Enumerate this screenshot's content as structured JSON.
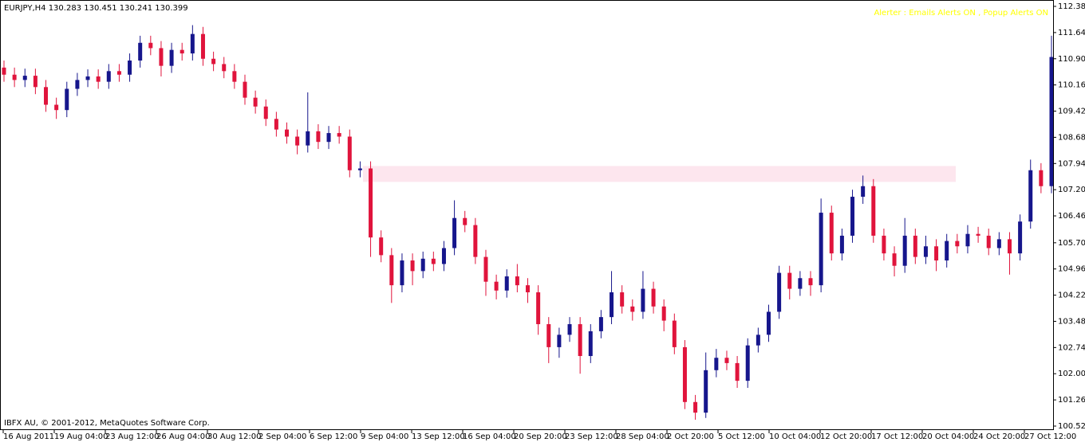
{
  "chart_data": {
    "type": "candlestick",
    "header": "EURJPY,H4  130.283 130.451 130.241 130.399",
    "annotation": "Alerter : Emails Alerts ON , Popup Alerts ON",
    "annotation_color": "#ffff00",
    "footer": "IBFX AU, © 2001-2012, MetaQuotes Software Corp.",
    "up_color": "#16168c",
    "down_color": "#e0143c",
    "zone": {
      "low": 107.42,
      "high": 107.87,
      "color": "#fde6ee"
    },
    "ylim": [
      100.52,
      112.38
    ],
    "yticks": [
      {
        "value": 112.38,
        "label": "112.380"
      },
      {
        "value": 111.64,
        "label": "111.640"
      },
      {
        "value": 110.9,
        "label": "110.900"
      },
      {
        "value": 110.16,
        "label": "110.160"
      },
      {
        "value": 109.42,
        "label": "109.420"
      },
      {
        "value": 108.68,
        "label": "108.680"
      },
      {
        "value": 107.94,
        "label": "107.940"
      },
      {
        "value": 107.2,
        "label": "107.200"
      },
      {
        "value": 106.46,
        "label": "106.460"
      },
      {
        "value": 105.7,
        "label": "105.700"
      },
      {
        "value": 104.96,
        "label": "104.960"
      },
      {
        "value": 104.22,
        "label": "104.220"
      },
      {
        "value": 103.48,
        "label": "103.480"
      },
      {
        "value": 102.74,
        "label": "102.740"
      },
      {
        "value": 102,
        "label": "102.000"
      },
      {
        "value": 101.26,
        "label": "101.260"
      },
      {
        "value": 100.52,
        "label": "100.520"
      }
    ],
    "xticks": [
      "16 Aug 2011",
      "19 Aug 04:00",
      "23 Aug 12:00",
      "26 Aug 04:00",
      "30 Aug 12:00",
      "2 Sep 04:00",
      "6 Sep 12:00",
      "9 Sep 04:00",
      "13 Sep 12:00",
      "16 Sep 04:00",
      "20 Sep 20:00",
      "23 Sep 12:00",
      "28 Sep 04:00",
      "2 Oct 20:00",
      "5 Oct 12:00",
      "10 Oct 04:00",
      "12 Oct 20:00",
      "17 Oct 12:00",
      "20 Oct 04:00",
      "24 Oct 20:00",
      "27 Oct 12:00"
    ],
    "open": [
      110.65,
      110.45,
      110.3,
      110.42,
      110.1,
      109.6,
      109.45,
      110.05,
      110.3,
      110.4,
      110.25,
      110.55,
      110.45,
      110.85,
      111.35,
      111.2,
      110.7,
      111.15,
      111.05,
      111.6,
      110.9,
      110.75,
      110.55,
      110.25,
      109.8,
      109.55,
      109.2,
      108.9,
      108.7,
      108.45,
      108.85,
      108.55,
      108.8,
      108.7,
      107.75,
      107.8,
      105.85,
      105.35,
      104.5,
      105.2,
      104.9,
      105.25,
      105.1,
      105.55,
      106.4,
      106.2,
      105.3,
      104.6,
      104.35,
      104.75,
      104.5,
      104.3,
      103.4,
      102.75,
      103.1,
      103.4,
      102.5,
      103.2,
      103.6,
      104.3,
      103.9,
      103.75,
      104.4,
      103.9,
      103.5,
      102.75,
      101.2,
      100.9,
      102.1,
      102.45,
      102.3,
      101.8,
      102.8,
      103.1,
      103.75,
      104.85,
      104.4,
      104.7,
      104.5,
      106.55,
      105.4,
      105.9,
      107.0,
      107.3,
      105.9,
      105.4,
      105.05,
      105.9,
      105.3,
      105.6,
      105.2,
      105.75,
      105.6,
      105.95,
      105.9,
      105.55,
      105.8,
      105.4,
      106.3,
      107.75,
      107.3
    ],
    "high": [
      110.85,
      110.65,
      110.62,
      110.62,
      110.3,
      109.8,
      110.25,
      110.5,
      110.6,
      110.6,
      110.75,
      110.75,
      111.05,
      111.55,
      111.55,
      111.4,
      111.35,
      111.35,
      111.85,
      111.8,
      111.1,
      110.95,
      110.75,
      110.45,
      110.0,
      109.75,
      109.4,
      109.1,
      108.9,
      109.95,
      109.05,
      109.0,
      109.0,
      108.9,
      108.0,
      108.0,
      106.05,
      105.55,
      105.4,
      105.4,
      105.45,
      105.45,
      105.75,
      106.9,
      106.6,
      106.4,
      105.5,
      104.8,
      104.95,
      105.1,
      104.7,
      104.5,
      103.6,
      103.3,
      103.6,
      103.6,
      103.4,
      103.8,
      104.9,
      104.5,
      104.1,
      104.9,
      104.6,
      104.1,
      103.7,
      102.95,
      101.4,
      102.6,
      102.7,
      102.65,
      102.5,
      103.0,
      103.3,
      103.95,
      105.05,
      105.05,
      104.9,
      104.9,
      106.95,
      106.75,
      106.1,
      107.2,
      107.6,
      107.5,
      106.1,
      105.6,
      106.4,
      106.1,
      105.9,
      105.8,
      105.95,
      105.95,
      106.2,
      106.15,
      106.1,
      106.0,
      106.0,
      106.5,
      108.05,
      107.95,
      111.55
    ],
    "low": [
      110.25,
      110.1,
      110.1,
      109.9,
      109.4,
      109.2,
      109.25,
      109.85,
      110.1,
      110.05,
      110.05,
      110.25,
      110.25,
      110.65,
      111.0,
      110.4,
      110.5,
      110.85,
      110.85,
      110.7,
      110.55,
      110.35,
      110.05,
      109.6,
      109.35,
      109.0,
      108.7,
      108.5,
      108.2,
      108.25,
      108.35,
      108.35,
      108.5,
      107.55,
      107.55,
      105.3,
      105.15,
      104.0,
      104.3,
      104.5,
      104.7,
      104.9,
      104.9,
      105.35,
      106.0,
      105.1,
      104.2,
      104.1,
      104.15,
      104.3,
      104.0,
      103.1,
      102.3,
      102.45,
      102.9,
      102.0,
      102.3,
      103.0,
      103.4,
      103.7,
      103.5,
      103.55,
      103.7,
      103.2,
      102.55,
      101.0,
      100.7,
      100.75,
      101.9,
      102.1,
      101.6,
      101.6,
      102.6,
      102.9,
      103.55,
      104.1,
      104.2,
      104.2,
      104.3,
      105.2,
      105.2,
      105.7,
      106.8,
      105.7,
      105.2,
      104.75,
      104.85,
      105.1,
      105.1,
      104.9,
      105.0,
      105.4,
      105.4,
      105.7,
      105.35,
      105.35,
      104.8,
      105.2,
      106.1,
      107.1,
      107.1
    ],
    "close": [
      110.45,
      110.3,
      110.42,
      110.1,
      109.6,
      109.45,
      110.05,
      110.3,
      110.4,
      110.25,
      110.55,
      110.45,
      110.85,
      111.35,
      111.2,
      110.7,
      111.15,
      111.05,
      111.6,
      110.9,
      110.75,
      110.55,
      110.25,
      109.8,
      109.55,
      109.2,
      108.9,
      108.7,
      108.45,
      108.85,
      108.55,
      108.8,
      108.7,
      107.75,
      107.8,
      105.85,
      105.35,
      104.5,
      105.2,
      104.9,
      105.25,
      105.1,
      105.55,
      106.4,
      106.2,
      105.3,
      104.6,
      104.35,
      104.75,
      104.5,
      104.3,
      103.4,
      102.75,
      103.1,
      103.4,
      102.5,
      103.2,
      103.6,
      104.3,
      103.9,
      103.75,
      104.4,
      103.9,
      103.5,
      102.75,
      101.2,
      100.9,
      102.1,
      102.45,
      102.3,
      101.8,
      102.8,
      103.1,
      103.75,
      104.85,
      104.4,
      104.7,
      104.5,
      106.55,
      105.4,
      105.9,
      107.0,
      107.3,
      105.9,
      105.4,
      105.05,
      105.9,
      105.3,
      105.6,
      105.2,
      105.75,
      105.6,
      105.95,
      105.9,
      105.55,
      105.8,
      105.4,
      106.3,
      107.75,
      107.3,
      110.95
    ]
  }
}
